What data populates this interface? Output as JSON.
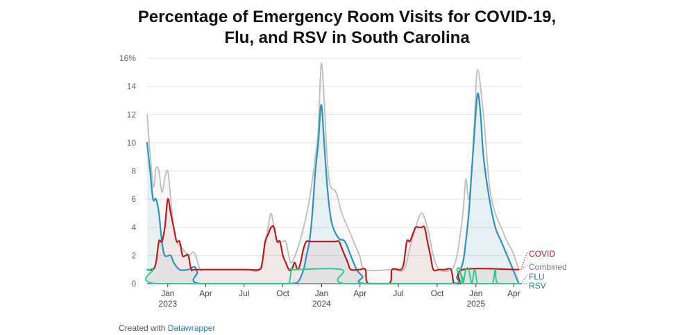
{
  "title": {
    "line1": "Percentage of Emergency Room Visits for COVID-19,",
    "line2": "Flu, and RSV in South Carolina"
  },
  "footer": {
    "prefix": "Created with ",
    "brand": "Datawrapper"
  },
  "colors": {
    "covid": "#b71c1c",
    "combined": "#bdbdbd",
    "flu": "#2b93c2",
    "rsv": "#2ecc8f",
    "grid": "#e2e2e2",
    "covid_label": "#b71c1c",
    "combined_label": "#777777",
    "flu_label": "#1f77b4",
    "rsv_label": "#1a8a5e"
  },
  "chart_data": {
    "type": "line",
    "title": "Percentage of Emergency Room Visits for COVID-19, Flu, and RSV in South Carolina",
    "xlabel": "",
    "ylabel": "",
    "ylim": [
      0,
      16
    ],
    "yticks": [
      {
        "value": 0,
        "label": "0"
      },
      {
        "value": 2,
        "label": "2"
      },
      {
        "value": 4,
        "label": "4"
      },
      {
        "value": 6,
        "label": "6"
      },
      {
        "value": 8,
        "label": "8"
      },
      {
        "value": 10,
        "label": "10"
      },
      {
        "value": 12,
        "label": "12"
      },
      {
        "value": 14,
        "label": "14"
      },
      {
        "value": 16,
        "label": "16%"
      }
    ],
    "xlim": [
      "2022-11-13",
      "2025-04-20"
    ],
    "xticks": [
      {
        "date": "2023-01-01",
        "label": "Jan",
        "year": "2023"
      },
      {
        "date": "2023-04-01",
        "label": "Apr",
        "year": ""
      },
      {
        "date": "2023-07-01",
        "label": "Jul",
        "year": ""
      },
      {
        "date": "2023-10-01",
        "label": "Oct",
        "year": ""
      },
      {
        "date": "2024-01-01",
        "label": "Jan",
        "year": "2024"
      },
      {
        "date": "2024-04-01",
        "label": "Apr",
        "year": ""
      },
      {
        "date": "2024-07-01",
        "label": "Jul",
        "year": ""
      },
      {
        "date": "2024-10-01",
        "label": "Oct",
        "year": ""
      },
      {
        "date": "2025-01-01",
        "label": "Jan",
        "year": "2025"
      },
      {
        "date": "2025-04-01",
        "label": "Apr",
        "year": ""
      }
    ],
    "grid": true,
    "legend": "direct labels at right end",
    "series": [
      {
        "name": "Combined",
        "key": "combined",
        "points": [
          [
            "2022-11-13",
            12
          ],
          [
            "2022-11-27",
            7
          ],
          [
            "2022-12-04",
            8.2
          ],
          [
            "2022-12-11",
            8
          ],
          [
            "2022-12-18",
            6.5
          ],
          [
            "2022-12-25",
            7.5
          ],
          [
            "2023-01-01",
            8
          ],
          [
            "2023-01-08",
            6
          ],
          [
            "2023-01-15",
            4
          ],
          [
            "2023-01-22",
            3
          ],
          [
            "2023-02-05",
            2.5
          ],
          [
            "2023-02-19",
            2
          ],
          [
            "2023-03-05",
            2.2
          ],
          [
            "2023-03-19",
            1
          ],
          [
            "2023-04-02",
            1
          ],
          [
            "2023-07-02",
            1
          ],
          [
            "2023-08-06",
            1
          ],
          [
            "2023-08-20",
            2.8
          ],
          [
            "2023-08-27",
            4
          ],
          [
            "2023-09-03",
            5
          ],
          [
            "2023-09-10",
            4
          ],
          [
            "2023-09-17",
            3
          ],
          [
            "2023-09-24",
            3
          ],
          [
            "2023-10-01",
            3
          ],
          [
            "2023-10-08",
            3
          ],
          [
            "2023-10-15",
            2
          ],
          [
            "2023-10-22",
            1.5
          ],
          [
            "2023-11-05",
            2.5
          ],
          [
            "2023-11-19",
            4
          ],
          [
            "2023-12-03",
            6
          ],
          [
            "2023-12-17",
            9
          ],
          [
            "2023-12-24",
            11
          ],
          [
            "2023-12-31",
            15.6
          ],
          [
            "2024-01-07",
            13
          ],
          [
            "2024-01-14",
            9
          ],
          [
            "2024-01-21",
            7
          ],
          [
            "2024-02-04",
            6.5
          ],
          [
            "2024-02-18",
            5
          ],
          [
            "2024-03-03",
            4
          ],
          [
            "2024-03-17",
            3
          ],
          [
            "2024-03-31",
            2
          ],
          [
            "2024-04-14",
            1
          ],
          [
            "2024-06-16",
            1
          ],
          [
            "2024-07-14",
            1
          ],
          [
            "2024-07-28",
            2.5
          ],
          [
            "2024-08-11",
            4
          ],
          [
            "2024-08-25",
            5
          ],
          [
            "2024-09-08",
            4
          ],
          [
            "2024-09-22",
            2
          ],
          [
            "2024-10-06",
            1
          ],
          [
            "2024-11-03",
            1
          ],
          [
            "2024-11-17",
            2
          ],
          [
            "2024-12-01",
            5
          ],
          [
            "2024-12-08",
            7.4
          ],
          [
            "2024-12-15",
            6
          ],
          [
            "2024-12-22",
            8
          ],
          [
            "2024-12-29",
            12
          ],
          [
            "2025-01-05",
            15.2
          ],
          [
            "2025-01-19",
            12
          ],
          [
            "2025-02-02",
            7
          ],
          [
            "2025-02-16",
            5
          ],
          [
            "2025-03-02",
            4
          ],
          [
            "2025-03-16",
            3
          ],
          [
            "2025-03-30",
            2.2
          ],
          [
            "2025-04-13",
            1
          ]
        ]
      },
      {
        "name": "FLU",
        "key": "flu",
        "points": [
          [
            "2022-11-13",
            10
          ],
          [
            "2022-11-20",
            8
          ],
          [
            "2022-11-27",
            6
          ],
          [
            "2022-12-04",
            6
          ],
          [
            "2022-12-11",
            5
          ],
          [
            "2022-12-18",
            3
          ],
          [
            "2022-12-25",
            2
          ],
          [
            "2023-01-08",
            2
          ],
          [
            "2023-01-15",
            1.5
          ],
          [
            "2023-01-29",
            1
          ],
          [
            "2023-02-19",
            1
          ],
          [
            "2023-03-05",
            1.2
          ],
          [
            "2023-03-12",
            0.8
          ],
          [
            "2023-03-19",
            0
          ],
          [
            "2023-10-01",
            0
          ],
          [
            "2023-10-15",
            0
          ],
          [
            "2023-11-05",
            0.1
          ],
          [
            "2023-11-19",
            1
          ],
          [
            "2023-11-26",
            2
          ],
          [
            "2023-12-03",
            3
          ],
          [
            "2023-12-10",
            5
          ],
          [
            "2023-12-17",
            8
          ],
          [
            "2023-12-24",
            10
          ],
          [
            "2023-12-31",
            12.7
          ],
          [
            "2024-01-07",
            10
          ],
          [
            "2024-01-14",
            7
          ],
          [
            "2024-01-21",
            5
          ],
          [
            "2024-01-28",
            4
          ],
          [
            "2024-02-11",
            3.2
          ],
          [
            "2024-02-25",
            3
          ],
          [
            "2024-03-10",
            2
          ],
          [
            "2024-03-24",
            1
          ],
          [
            "2024-04-07",
            0.5
          ],
          [
            "2024-04-14",
            0
          ],
          [
            "2024-11-03",
            0
          ],
          [
            "2024-11-17",
            0.5
          ],
          [
            "2024-12-01",
            1.5
          ],
          [
            "2024-12-08",
            3
          ],
          [
            "2024-12-15",
            5
          ],
          [
            "2024-12-22",
            8
          ],
          [
            "2024-12-29",
            11
          ],
          [
            "2025-01-05",
            13.5
          ],
          [
            "2025-01-12",
            12
          ],
          [
            "2025-01-19",
            9
          ],
          [
            "2025-02-02",
            6
          ],
          [
            "2025-02-16",
            4
          ],
          [
            "2025-03-02",
            3
          ],
          [
            "2025-03-16",
            2
          ],
          [
            "2025-03-30",
            1
          ],
          [
            "2025-04-06",
            0.5
          ],
          [
            "2025-04-13",
            0
          ]
        ]
      },
      {
        "name": "COVID",
        "key": "covid",
        "points": [
          [
            "2022-11-13",
            1
          ],
          [
            "2022-11-27",
            1
          ],
          [
            "2022-12-04",
            1.5
          ],
          [
            "2022-12-11",
            3
          ],
          [
            "2022-12-18",
            3
          ],
          [
            "2022-12-25",
            4
          ],
          [
            "2023-01-01",
            6
          ],
          [
            "2023-01-08",
            5
          ],
          [
            "2023-01-15",
            4
          ],
          [
            "2023-01-22",
            3
          ],
          [
            "2023-01-29",
            3
          ],
          [
            "2023-02-05",
            2
          ],
          [
            "2023-02-12",
            2
          ],
          [
            "2023-02-19",
            2
          ],
          [
            "2023-02-26",
            1
          ],
          [
            "2023-03-12",
            1
          ],
          [
            "2023-07-02",
            1
          ],
          [
            "2023-08-06",
            1
          ],
          [
            "2023-08-13",
            1.5
          ],
          [
            "2023-08-20",
            3
          ],
          [
            "2023-08-27",
            3.5
          ],
          [
            "2023-09-03",
            4
          ],
          [
            "2023-09-10",
            4
          ],
          [
            "2023-09-17",
            3
          ],
          [
            "2023-09-24",
            3
          ],
          [
            "2023-10-01",
            2
          ],
          [
            "2023-10-08",
            1.5
          ],
          [
            "2023-10-15",
            1
          ],
          [
            "2023-10-22",
            1
          ],
          [
            "2023-10-29",
            1.5
          ],
          [
            "2023-11-05",
            1
          ],
          [
            "2023-11-12",
            1.5
          ],
          [
            "2023-11-19",
            2.5
          ],
          [
            "2023-11-26",
            3
          ],
          [
            "2023-12-03",
            3
          ],
          [
            "2023-12-10",
            3
          ],
          [
            "2023-12-17",
            3
          ],
          [
            "2023-12-24",
            3
          ],
          [
            "2023-12-31",
            3
          ],
          [
            "2024-01-07",
            3
          ],
          [
            "2024-01-14",
            3
          ],
          [
            "2024-01-21",
            3
          ],
          [
            "2024-01-28",
            3
          ],
          [
            "2024-02-04",
            3
          ],
          [
            "2024-02-11",
            3
          ],
          [
            "2024-02-18",
            2.5
          ],
          [
            "2024-02-25",
            2
          ],
          [
            "2024-03-03",
            1.5
          ],
          [
            "2024-03-10",
            1
          ],
          [
            "2024-03-31",
            1
          ],
          [
            "2024-04-14",
            1
          ],
          [
            "2024-04-21",
            0
          ],
          [
            "2024-06-09",
            0
          ],
          [
            "2024-06-16",
            1
          ],
          [
            "2024-07-07",
            1
          ],
          [
            "2024-07-14",
            1.5
          ],
          [
            "2024-07-21",
            3
          ],
          [
            "2024-07-28",
            3
          ],
          [
            "2024-08-04",
            3.5
          ],
          [
            "2024-08-11",
            4
          ],
          [
            "2024-08-18",
            4
          ],
          [
            "2024-08-25",
            4
          ],
          [
            "2024-09-01",
            4
          ],
          [
            "2024-09-08",
            3
          ],
          [
            "2024-09-15",
            2
          ],
          [
            "2024-09-22",
            1
          ],
          [
            "2024-10-06",
            1
          ],
          [
            "2024-10-20",
            1
          ],
          [
            "2024-11-03",
            1
          ],
          [
            "2024-11-10",
            0
          ],
          [
            "2024-11-24",
            0
          ],
          [
            "2024-12-01",
            1
          ],
          [
            "2025-04-13",
            1
          ]
        ]
      },
      {
        "name": "RSV",
        "key": "rsv",
        "points": [
          [
            "2022-11-13",
            1
          ],
          [
            "2022-11-20",
            1
          ],
          [
            "2022-11-27",
            1
          ],
          [
            "2022-12-04",
            0
          ],
          [
            "2023-10-01",
            0
          ],
          [
            "2023-10-15",
            0
          ],
          [
            "2023-10-22",
            1
          ],
          [
            "2023-10-29",
            1
          ],
          [
            "2024-02-18",
            1
          ],
          [
            "2024-02-25",
            0
          ],
          [
            "2024-11-10",
            0
          ],
          [
            "2024-11-17",
            1
          ],
          [
            "2024-11-24",
            1
          ],
          [
            "2024-12-01",
            0
          ],
          [
            "2024-12-08",
            1
          ],
          [
            "2024-12-15",
            1
          ],
          [
            "2024-12-22",
            0
          ],
          [
            "2024-12-29",
            1
          ],
          [
            "2025-01-05",
            0
          ],
          [
            "2025-01-19",
            0
          ],
          [
            "2025-02-09",
            0
          ],
          [
            "2025-02-16",
            1
          ],
          [
            "2025-02-23",
            0
          ],
          [
            "2025-04-13",
            0
          ]
        ]
      }
    ],
    "labels": [
      {
        "series": "covid",
        "text": "COVID"
      },
      {
        "series": "combined",
        "text": "Combined"
      },
      {
        "series": "flu",
        "text": "FLU"
      },
      {
        "series": "rsv",
        "text": "RSV"
      }
    ]
  }
}
